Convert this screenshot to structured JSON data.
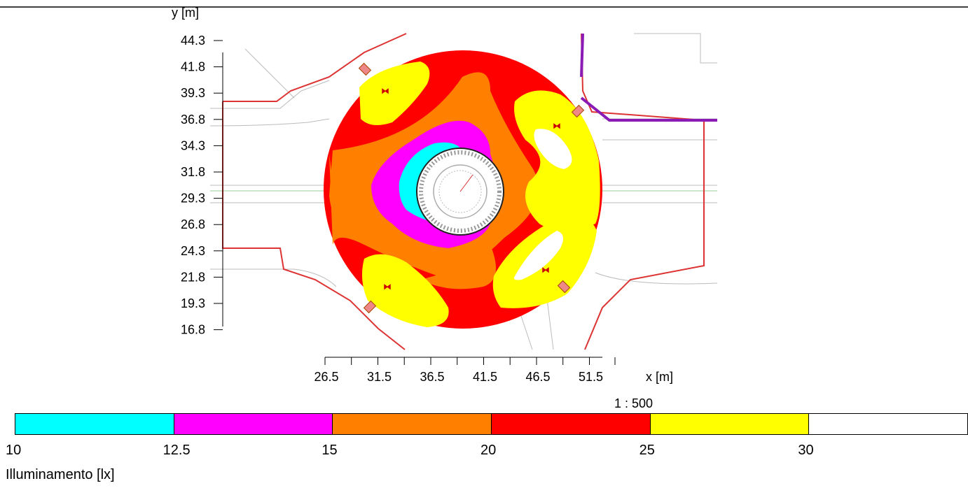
{
  "axes": {
    "y_label": "y [m]",
    "y_ticks": [
      "44.3",
      "41.8",
      "39.3",
      "36.8",
      "34.3",
      "31.8",
      "29.3",
      "26.8",
      "24.3",
      "21.8",
      "19.3",
      "16.8"
    ],
    "x_label": "x [m]",
    "x_ticks": [
      "26.5",
      "31.5",
      "36.5",
      "41.5",
      "46.5",
      "51.5"
    ]
  },
  "scale": "1 : 500",
  "legend": {
    "title": "Illuminamento [lx]",
    "labels": [
      "10",
      "12.5",
      "15",
      "20",
      "25",
      "30"
    ],
    "colors": [
      "#00ffff",
      "#ff00ff",
      "#ff8000",
      "#ff0000",
      "#ffff00",
      "#ffffff"
    ]
  }
}
